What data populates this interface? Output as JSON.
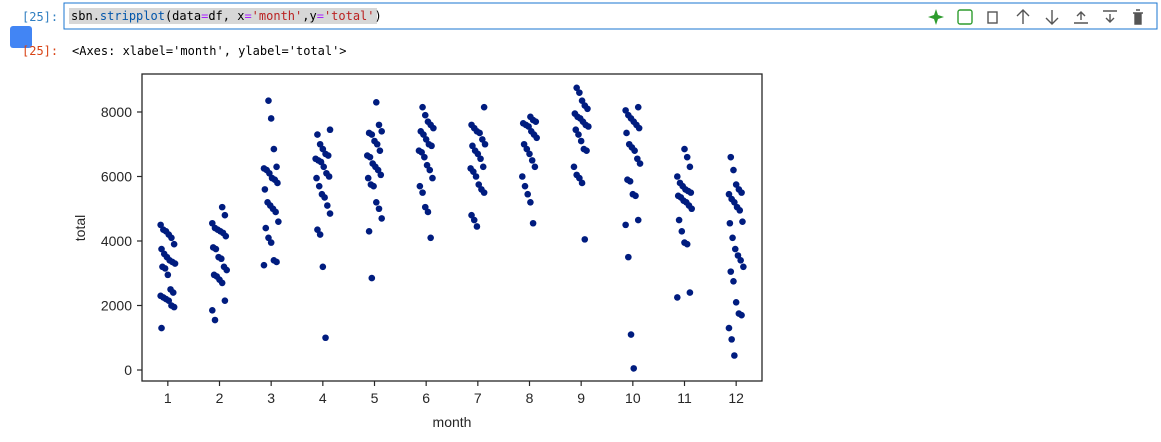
{
  "cell": {
    "in_prompt": "[25]:",
    "out_prompt": "[25]:",
    "code_tokens": [
      {
        "text": "sbn",
        "color": "#000000"
      },
      {
        "text": ".",
        "color": "#000000"
      },
      {
        "text": "stripplot",
        "color": "#0055aa"
      },
      {
        "text": "(data",
        "color": "#000000"
      },
      {
        "text": "=",
        "color": "#aa22ff"
      },
      {
        "text": "df, x",
        "color": "#000000"
      },
      {
        "text": "=",
        "color": "#aa22ff"
      },
      {
        "text": "'month'",
        "color": "#ba2121"
      },
      {
        "text": ",y",
        "color": "#000000"
      },
      {
        "text": "=",
        "color": "#aa22ff"
      },
      {
        "text": "'total'",
        "color": "#ba2121"
      },
      {
        "text": ")",
        "color": "#000000"
      }
    ],
    "output": "<Axes: xlabel='month', ylabel='total'>"
  },
  "chart_data": {
    "type": "strip",
    "xlabel": "month",
    "ylabel": "total",
    "color": "#001c7f",
    "categories": [
      "1",
      "2",
      "3",
      "4",
      "5",
      "6",
      "7",
      "8",
      "9",
      "10",
      "11",
      "12"
    ],
    "values": [
      [
        4500,
        4350,
        4300,
        4200,
        4100,
        3900,
        3750,
        3600,
        3500,
        3400,
        3350,
        3300,
        3200,
        3150,
        2950,
        2500,
        2400,
        2300,
        2250,
        2200,
        2150,
        2000,
        1950,
        1300
      ],
      [
        5050,
        4800,
        4550,
        4400,
        4350,
        4300,
        4250,
        4150,
        3800,
        3750,
        3500,
        3450,
        3200,
        3100,
        2950,
        2900,
        2800,
        2700,
        2150,
        1850,
        1550
      ],
      [
        8350,
        7800,
        6850,
        6300,
        6250,
        6200,
        6100,
        5950,
        5900,
        5800,
        5600,
        5200,
        5100,
        5000,
        4900,
        4600,
        4400,
        4100,
        3950,
        3400,
        3350,
        3250
      ],
      [
        7450,
        7300,
        7000,
        6850,
        6700,
        6650,
        6550,
        6500,
        6450,
        6300,
        6100,
        6000,
        5950,
        5700,
        5450,
        5350,
        5100,
        4850,
        4350,
        4200,
        3200,
        1000
      ],
      [
        8300,
        7600,
        7400,
        7350,
        7300,
        7100,
        7000,
        6800,
        6650,
        6600,
        6400,
        6300,
        6200,
        6050,
        5950,
        5750,
        5700,
        5200,
        5000,
        4700,
        4300,
        2850
      ],
      [
        8150,
        7900,
        7700,
        7600,
        7500,
        7400,
        7300,
        7150,
        7000,
        6950,
        6800,
        6750,
        6600,
        6350,
        6200,
        5950,
        5700,
        5500,
        5050,
        4900,
        4100
      ],
      [
        8150,
        7600,
        7500,
        7400,
        7350,
        7150,
        7000,
        6950,
        6800,
        6700,
        6550,
        6300,
        6250,
        6150,
        6000,
        5750,
        5600,
        5500,
        4800,
        4650,
        4450
      ],
      [
        7850,
        7750,
        7700,
        7650,
        7600,
        7550,
        7400,
        7300,
        7200,
        7000,
        6850,
        6700,
        6500,
        6300,
        6000,
        5700,
        5450,
        5200,
        4550
      ],
      [
        8750,
        8600,
        8350,
        8200,
        8100,
        7950,
        7850,
        7800,
        7700,
        7600,
        7550,
        7450,
        7300,
        7100,
        6850,
        6800,
        6300,
        6050,
        5950,
        5800,
        4050
      ],
      [
        8150,
        8050,
        7900,
        7800,
        7700,
        7600,
        7500,
        7350,
        7000,
        6900,
        6800,
        6550,
        6400,
        5900,
        5850,
        5450,
        5400,
        4650,
        4500,
        3500,
        1100,
        50
      ],
      [
        6850,
        6600,
        6300,
        6000,
        5800,
        5700,
        5600,
        5550,
        5500,
        5400,
        5350,
        5250,
        5200,
        5100,
        5000,
        4650,
        4300,
        3950,
        3900,
        2400,
        2250
      ],
      [
        6600,
        6200,
        5750,
        5600,
        5500,
        5450,
        5300,
        5200,
        5050,
        4950,
        4600,
        4550,
        4100,
        3750,
        3550,
        3400,
        3200,
        3050,
        2750,
        2100,
        1750,
        1700,
        1300,
        950,
        450
      ]
    ],
    "ylim": [
      -341,
      9178
    ],
    "yticks": [
      0,
      2000,
      4000,
      6000,
      8000
    ]
  }
}
